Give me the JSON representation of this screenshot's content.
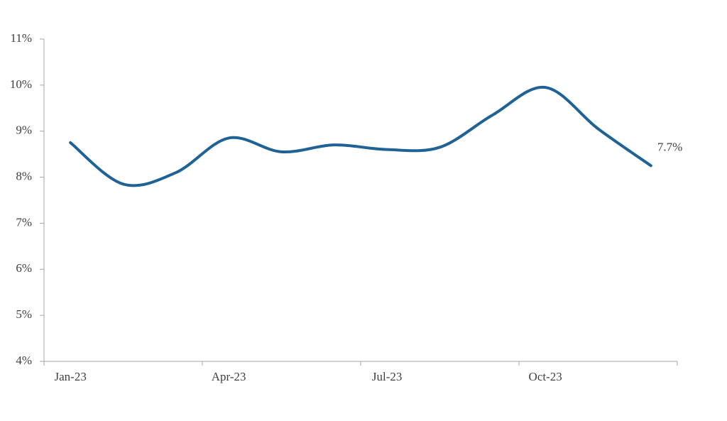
{
  "chart_data": {
    "type": "line",
    "categories": [
      "Jan-23",
      null,
      null,
      "Apr-23",
      null,
      null,
      "Jul-23",
      null,
      null,
      "Oct-23",
      null,
      null
    ],
    "series": [
      {
        "color": "#1f6296",
        "values": [
          8.75,
          7.85,
          8.1,
          8.85,
          8.55,
          8.7,
          8.6,
          8.65,
          9.35,
          9.95,
          9.05,
          8.25
        ]
      }
    ],
    "annotation": "7.7%",
    "ylim": [
      4,
      11
    ],
    "yticks": [
      {
        "value": 4,
        "label": "4%"
      },
      {
        "value": 5,
        "label": "5%"
      },
      {
        "value": 6,
        "label": "6%"
      },
      {
        "value": 7,
        "label": "7%"
      },
      {
        "value": 8,
        "label": "8%"
      },
      {
        "value": 9,
        "label": "9%"
      },
      {
        "value": 10,
        "label": "10%"
      },
      {
        "value": 11,
        "label": "11%"
      }
    ],
    "grid": false
  }
}
